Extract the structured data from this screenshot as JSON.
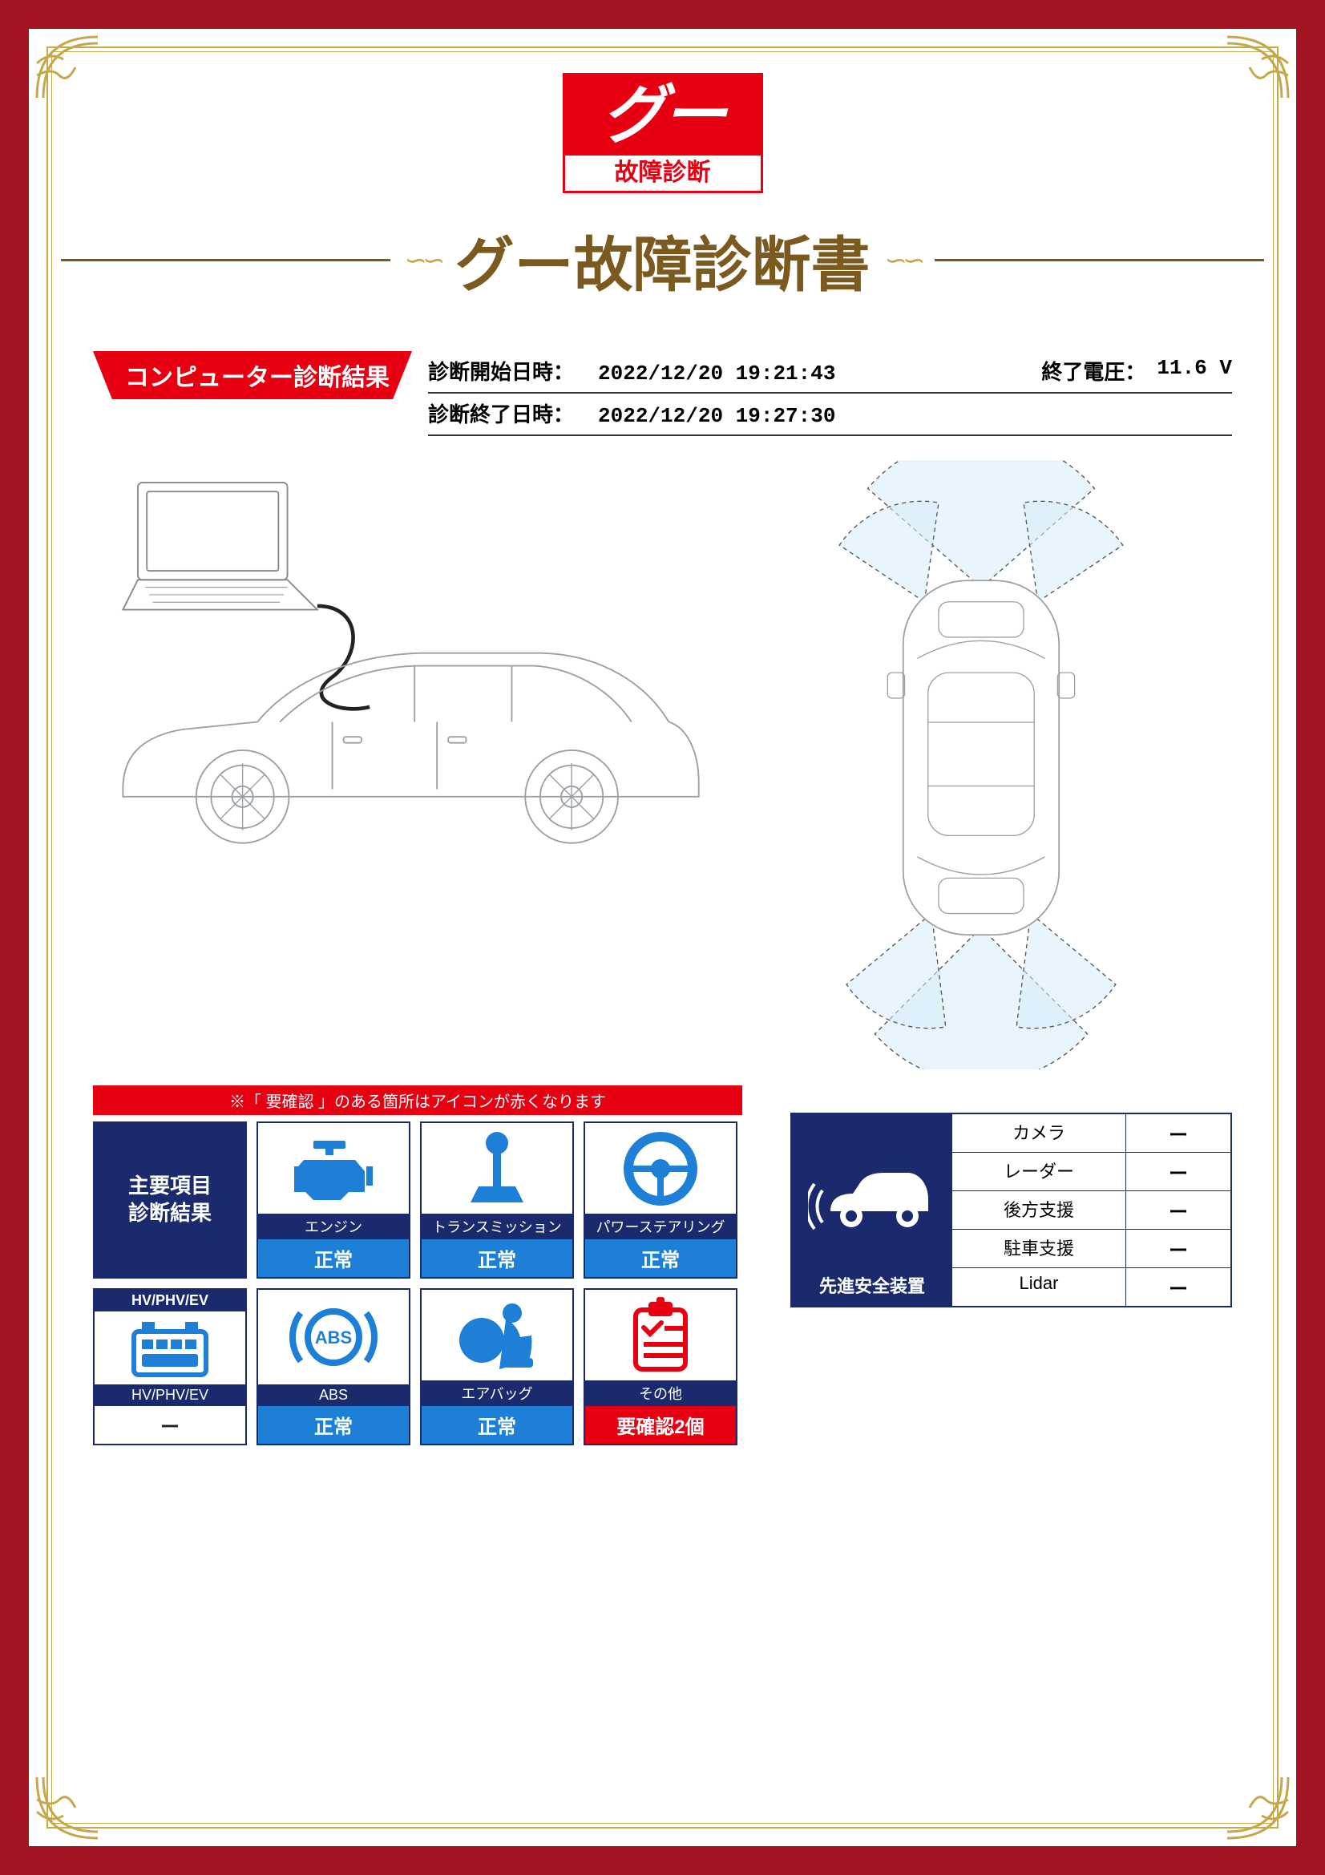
{
  "colors": {
    "frame": "#a31420",
    "gold": "#c4a84a",
    "title": "#7a5a1e",
    "accent_red": "#e60012",
    "navy": "#1a2a6c",
    "status_blue": "#1e7fd6",
    "icon_blue": "#1e7fd6",
    "icon_red": "#e60012"
  },
  "logo": {
    "top": "グー",
    "bottom": "故障診断"
  },
  "title": "グー故障診断書",
  "section_tag": "コンピューター診断結果",
  "meta": {
    "start_label": "診断開始日時：",
    "start_value": "2022/12/20 19:21:43",
    "end_label": "診断終了日時：",
    "end_value": "2022/12/20 19:27:30",
    "volt_label": "終了電圧：",
    "volt_value": "11.6 V"
  },
  "note_bar": "※「 要確認 」のある箇所はアイコンが赤くなります",
  "main_cell": "主要項目\n診断結果",
  "cells": [
    {
      "icon": "engine",
      "label": "エンジン",
      "status": "正常",
      "status_cls": "status-blue"
    },
    {
      "icon": "trans",
      "label": "トランスミッション",
      "status": "正常",
      "status_cls": "status-blue"
    },
    {
      "icon": "steer",
      "label": "パワーステアリング",
      "status": "正常",
      "status_cls": "status-blue"
    },
    {
      "icon": "hv",
      "label": "HV/PHV/EV",
      "status": "ー",
      "status_cls": "status-white"
    },
    {
      "icon": "abs",
      "label": "ABS",
      "status": "正常",
      "status_cls": "status-blue"
    },
    {
      "icon": "airbag",
      "label": "エアバッグ",
      "status": "正常",
      "status_cls": "status-blue"
    },
    {
      "icon": "other",
      "label": "その他",
      "status": "要確認2個",
      "status_cls": "status-red"
    }
  ],
  "hv_header": "HV/PHV/EV",
  "safety_header": "先進安全装置",
  "safety_rows": [
    {
      "name": "カメラ",
      "val": "ー"
    },
    {
      "name": "レーダー",
      "val": "ー"
    },
    {
      "name": "後方支援",
      "val": "ー"
    },
    {
      "name": "駐車支援",
      "val": "ー"
    },
    {
      "name": "Lidar",
      "val": "ー"
    }
  ]
}
